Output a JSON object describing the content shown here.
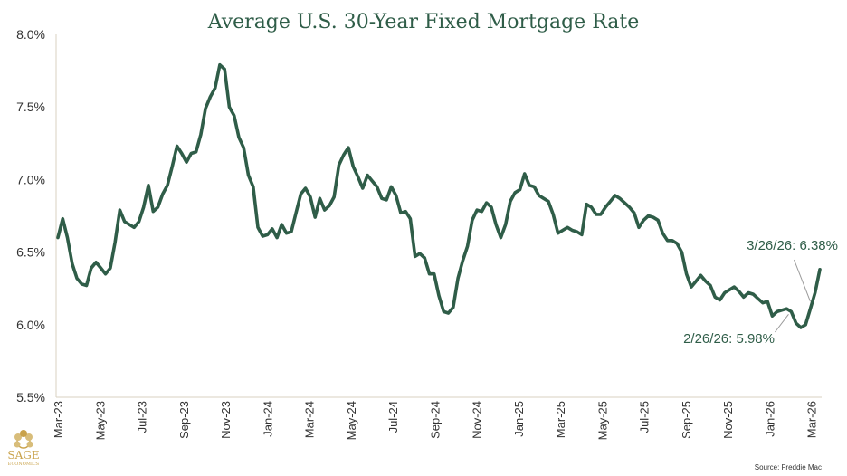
{
  "chart_data": {
    "type": "line",
    "title": "Average U.S. 30-Year Fixed Mortgage Rate",
    "xlabel": "",
    "ylabel": "",
    "ylim": [
      5.5,
      8.0
    ],
    "yticks": [
      "8.0%",
      "7.5%",
      "7.0%",
      "6.5%",
      "6.0%",
      "5.5%"
    ],
    "xticks": [
      "Mar-23",
      "May-23",
      "Jul-23",
      "Sep-23",
      "Nov-23",
      "Jan-24",
      "Mar-24",
      "May-24",
      "Jul-24",
      "Sep-24",
      "Nov-24",
      "Jan-25",
      "Mar-25",
      "May-25",
      "Jul-25",
      "Sep-25",
      "Nov-25",
      "Jan-26",
      "Mar-26"
    ],
    "line_color": "#2f5d48",
    "grid": false,
    "series": [
      {
        "values": [
          6.6,
          6.73,
          6.6,
          6.42,
          6.32,
          6.28,
          6.27,
          6.39,
          6.43,
          6.39,
          6.35,
          6.39,
          6.57,
          6.79,
          6.71,
          6.69,
          6.67,
          6.71,
          6.81,
          6.96,
          6.78,
          6.81,
          6.9,
          6.96,
          7.09,
          7.23,
          7.18,
          7.12,
          7.18,
          7.19,
          7.31,
          7.49,
          7.57,
          7.63,
          7.79,
          7.76,
          7.5,
          7.44,
          7.29,
          7.22,
          7.03,
          6.95,
          6.67,
          6.61,
          6.62,
          6.66,
          6.6,
          6.69,
          6.63,
          6.64,
          6.77,
          6.9,
          6.94,
          6.88,
          6.74,
          6.87,
          6.79,
          6.82,
          6.88,
          7.1,
          7.17,
          7.22,
          7.09,
          7.02,
          6.94,
          7.03,
          6.99,
          6.95,
          6.87,
          6.86,
          6.95,
          6.89,
          6.77,
          6.78,
          6.73,
          6.47,
          6.49,
          6.46,
          6.35,
          6.35,
          6.2,
          6.09,
          6.08,
          6.12,
          6.32,
          6.44,
          6.54,
          6.72,
          6.79,
          6.78,
          6.84,
          6.81,
          6.69,
          6.6,
          6.69,
          6.85,
          6.91,
          6.93,
          7.04,
          6.96,
          6.95,
          6.89,
          6.87,
          6.85,
          6.76,
          6.63,
          6.65,
          6.67,
          6.65,
          6.64,
          6.62,
          6.83,
          6.81,
          6.76,
          6.76,
          6.81,
          6.85,
          6.89,
          6.87,
          6.84,
          6.81,
          6.77,
          6.67,
          6.72,
          6.75,
          6.74,
          6.72,
          6.63,
          6.58,
          6.58,
          6.56,
          6.5,
          6.35,
          6.26,
          6.3,
          6.34,
          6.3,
          6.27,
          6.19,
          6.17,
          6.22,
          6.24,
          6.26,
          6.23,
          6.19,
          6.22,
          6.21,
          6.18,
          6.15,
          6.16,
          6.06,
          6.09,
          6.1,
          6.11,
          6.09,
          6.01,
          5.98,
          6.0,
          6.11,
          6.22,
          6.38
        ]
      }
    ],
    "annotations": [
      {
        "text": "3/26/26: 6.38%",
        "index": 158
      },
      {
        "text": "2/26/26: 5.98%",
        "index": 154
      }
    ],
    "source": "Source: Freddie Mac"
  },
  "logo": {
    "name": "SAGE",
    "subtitle": "ECONOMICS"
  }
}
